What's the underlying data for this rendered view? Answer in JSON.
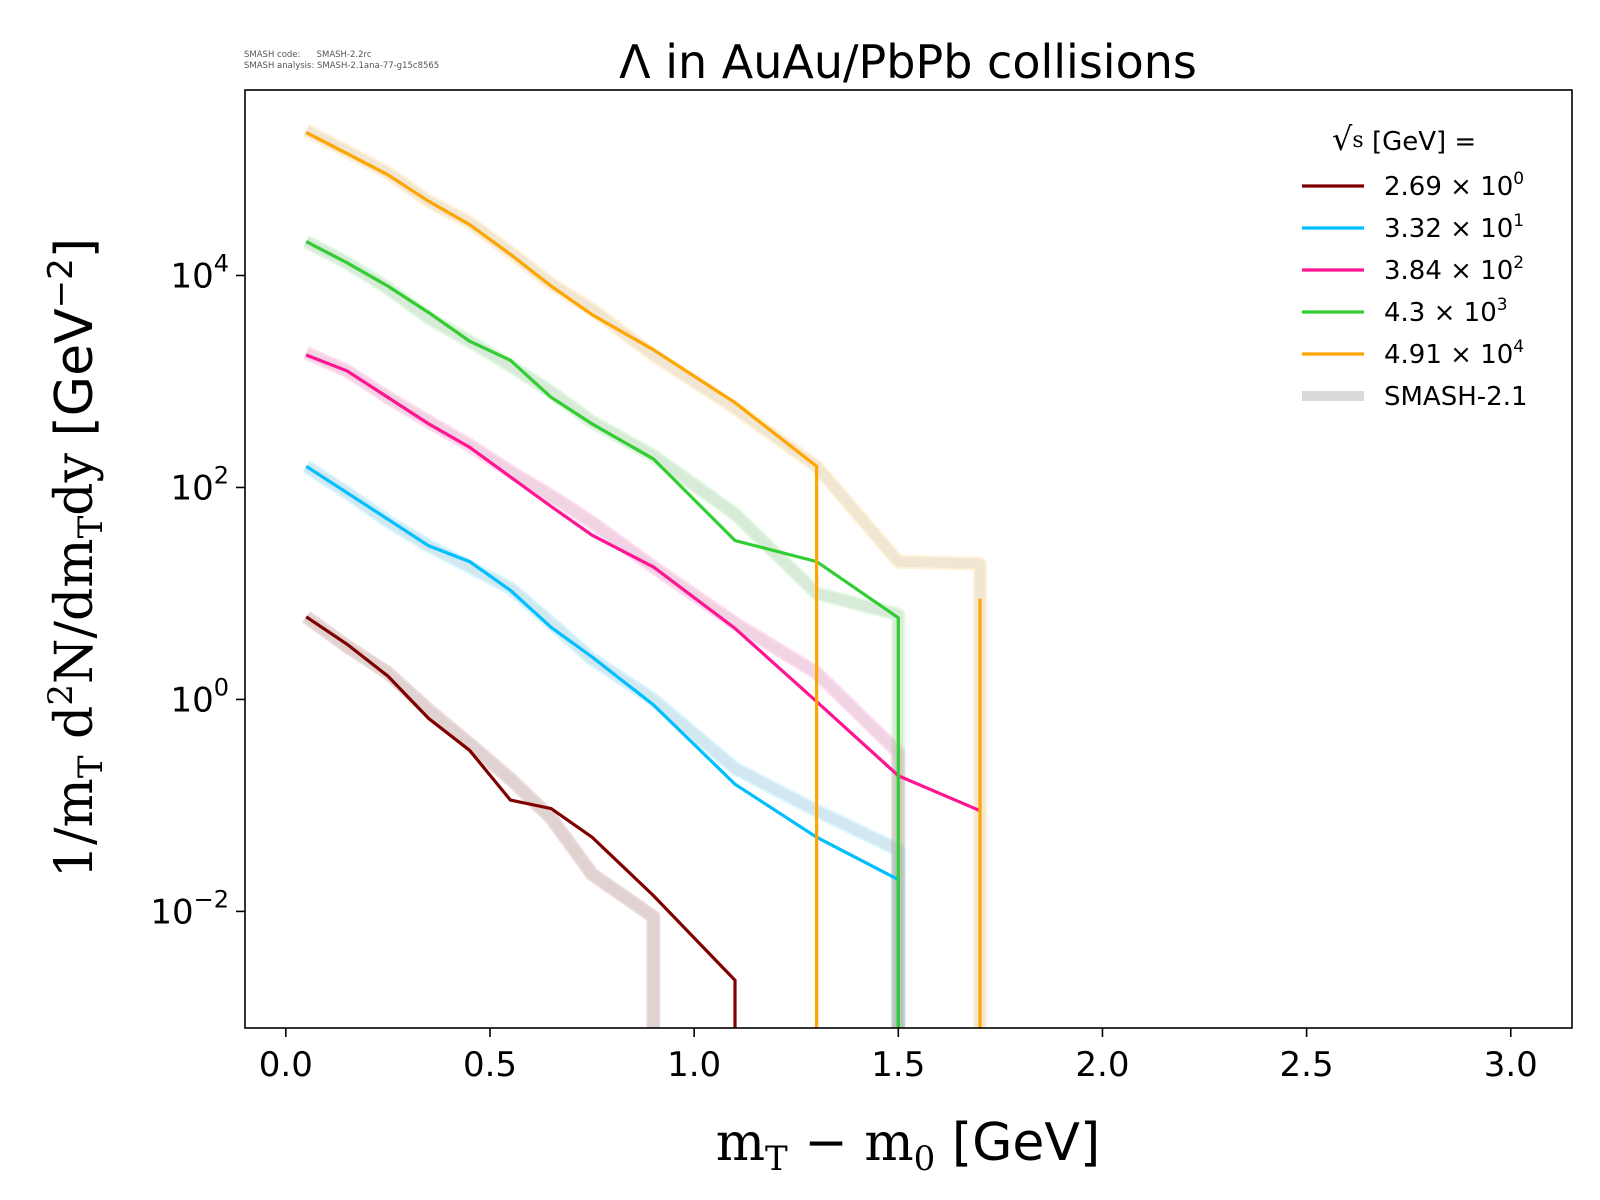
{
  "watermark": {
    "line1": "SMASH code:      SMASH-2.2rc",
    "line2": "SMASH analysis: SMASH-2.1ana-77-g15c8565"
  },
  "chart_data": {
    "type": "line",
    "title": "Λ in AuAu/PbPb collisions",
    "xlabel_main": "m",
    "xlabel_sub1": "T",
    "xlabel_mid": " − m",
    "xlabel_sub2": "0",
    "xlabel_unit": " [GeV]",
    "ylabel_text": "1/m",
    "ylabel_sub": "T",
    "ylabel_mid": " d",
    "ylabel_sup": "2",
    "ylabel_mid2": "N/dm",
    "ylabel_sub2": "T",
    "ylabel_end": "dy",
    "ylabel_unit": " [GeV",
    "ylabel_unit_sup": "−2",
    "ylabel_unit_close": "]",
    "xlim": [
      -0.1,
      3.15
    ],
    "ylim_log10": [
      -3.1,
      5.75
    ],
    "yscale": "log",
    "x_ticks": [
      "0.0",
      "0.5",
      "1.0",
      "1.5",
      "2.0",
      "2.5",
      "3.0"
    ],
    "x_tick_values": [
      0.0,
      0.5,
      1.0,
      1.5,
      2.0,
      2.5,
      3.0
    ],
    "y_ticks": [
      {
        "base": "10",
        "exp": "4",
        "value_log10": 4
      },
      {
        "base": "10",
        "exp": "2",
        "value_log10": 2
      },
      {
        "base": "10",
        "exp": "0",
        "value_log10": 0
      },
      {
        "base": "10",
        "exp": "−2",
        "value_log10": -2
      }
    ],
    "legend": {
      "title_sqrt": "√",
      "title_s": "s",
      "title_rest": "  [GeV] =",
      "placement": "top-right",
      "entries": [
        {
          "mant": "2.69",
          "times": " × 10",
          "exp": "0",
          "color": "#800000"
        },
        {
          "mant": "3.32",
          "times": " × 10",
          "exp": "1",
          "color": "#00bfff"
        },
        {
          "mant": "3.84",
          "times": " × 10",
          "exp": "2",
          "color": "#ff1493"
        },
        {
          "mant": "4.3",
          "times": " × 10",
          "exp": "3",
          "color": "#32cd32"
        },
        {
          "mant": "4.91",
          "times": " × 10",
          "exp": "4",
          "color": "#ffa500"
        },
        {
          "label": "SMASH-2.1",
          "color": "#d9d9d9"
        }
      ]
    },
    "series": [
      {
        "color": "#800000",
        "x": [
          0.05,
          0.15,
          0.25,
          0.35,
          0.45,
          0.55,
          0.65,
          0.75,
          0.9,
          1.1,
          1.1
        ],
        "y_log10": [
          0.78,
          0.52,
          0.22,
          -0.18,
          -0.48,
          -0.95,
          -1.03,
          -1.3,
          -1.85,
          -2.65,
          -3.4
        ]
      },
      {
        "color": "#00bfff",
        "x": [
          0.05,
          0.15,
          0.25,
          0.35,
          0.45,
          0.55,
          0.65,
          0.75,
          0.9,
          1.1,
          1.3,
          1.5,
          1.5
        ],
        "y_log10": [
          2.2,
          1.95,
          1.7,
          1.45,
          1.3,
          1.03,
          0.68,
          0.4,
          -0.05,
          -0.8,
          -1.3,
          -1.7,
          -3.4
        ]
      },
      {
        "color": "#ff1493",
        "x": [
          0.05,
          0.15,
          0.25,
          0.35,
          0.45,
          0.55,
          0.65,
          0.75,
          0.9,
          1.1,
          1.3,
          1.5,
          1.7
        ],
        "y_log10": [
          3.25,
          3.1,
          2.85,
          2.6,
          2.38,
          2.1,
          1.82,
          1.55,
          1.25,
          0.67,
          -0.02,
          -0.72,
          -1.05
        ]
      },
      {
        "color": "#32cd32",
        "x": [
          0.05,
          0.15,
          0.25,
          0.35,
          0.45,
          0.55,
          0.65,
          0.75,
          0.9,
          1.1,
          1.3,
          1.5,
          1.5
        ],
        "y_log10": [
          4.32,
          4.12,
          3.9,
          3.65,
          3.38,
          3.2,
          2.85,
          2.6,
          2.27,
          1.5,
          1.3,
          0.77,
          -3.4
        ]
      },
      {
        "color": "#ffa500",
        "x": [
          0.05,
          0.15,
          0.25,
          0.35,
          0.45,
          0.55,
          0.65,
          0.75,
          0.9,
          1.1,
          1.3,
          1.3,
          1.3
        ],
        "y_log10": [
          5.35,
          5.15,
          4.95,
          4.7,
          4.48,
          4.2,
          3.9,
          3.63,
          3.3,
          2.8,
          2.2,
          2.2,
          -3.4
        ]
      },
      {
        "color": "#ffa500",
        "x": [
          1.7,
          1.7
        ],
        "y_log10": [
          0.95,
          -3.4
        ]
      }
    ],
    "reference_series": [
      {
        "color": "#800000",
        "x": [
          0.05,
          0.15,
          0.25,
          0.35,
          0.45,
          0.55,
          0.65,
          0.75,
          0.9,
          0.9
        ],
        "y_log10": [
          0.78,
          0.5,
          0.25,
          -0.1,
          -0.42,
          -0.75,
          -1.12,
          -1.65,
          -2.05,
          -3.4
        ]
      },
      {
        "color": "#00bfff",
        "x": [
          0.05,
          0.15,
          0.25,
          0.35,
          0.45,
          0.55,
          0.65,
          0.75,
          0.9,
          1.1,
          1.3,
          1.5,
          1.5
        ],
        "y_log10": [
          2.2,
          1.95,
          1.68,
          1.45,
          1.25,
          1.05,
          0.72,
          0.38,
          0.0,
          -0.65,
          -1.05,
          -1.42,
          -3.4
        ]
      },
      {
        "color": "#ff1493",
        "x": [
          0.05,
          0.15,
          0.25,
          0.35,
          0.45,
          0.55,
          0.65,
          0.75,
          0.9,
          1.1,
          1.3,
          1.5,
          1.5
        ],
        "y_log10": [
          3.27,
          3.1,
          2.85,
          2.62,
          2.4,
          2.15,
          1.92,
          1.67,
          1.25,
          0.72,
          0.25,
          -0.5,
          -3.4
        ]
      },
      {
        "color": "#32cd32",
        "x": [
          0.05,
          0.15,
          0.25,
          0.35,
          0.45,
          0.55,
          0.65,
          0.75,
          0.9,
          1.1,
          1.3,
          1.5,
          1.5
        ],
        "y_log10": [
          4.32,
          4.12,
          3.88,
          3.6,
          3.38,
          3.15,
          2.9,
          2.62,
          2.3,
          1.75,
          1.0,
          0.8,
          -3.4
        ]
      },
      {
        "color": "#ffa500",
        "x": [
          0.05,
          0.15,
          0.25,
          0.35,
          0.45,
          0.55,
          0.65,
          0.75,
          0.9,
          1.1,
          1.3,
          1.5,
          1.7,
          1.7
        ],
        "y_log10": [
          5.37,
          5.17,
          4.97,
          4.7,
          4.5,
          4.22,
          3.92,
          3.68,
          3.25,
          2.75,
          2.2,
          1.3,
          1.28,
          -3.4
        ]
      }
    ]
  }
}
